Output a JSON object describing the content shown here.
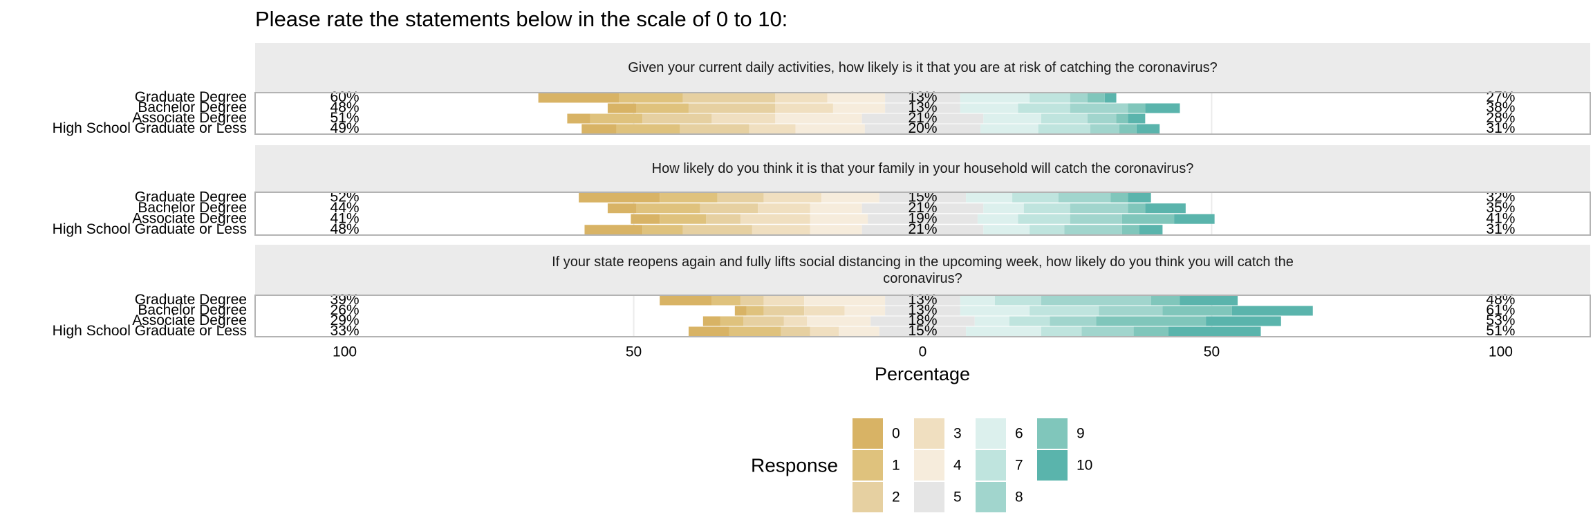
{
  "chart_data": {
    "type": "diverging_bar",
    "title": "Please rate the statements below in the scale of 0 to 10:",
    "x_label": "Percentage",
    "legend_title": "Response",
    "xlim": [
      -115.5,
      115.5
    ],
    "xticks": [
      {
        "value": -100,
        "label": "100"
      },
      {
        "value": -50,
        "label": "50"
      },
      0,
      50,
      100
    ],
    "categories": [
      "Graduate Degree",
      "Bachelor Degree",
      "Associate Degree",
      "High School Graduate or Less"
    ],
    "series": [
      {
        "name": "0",
        "color": "#d8b365"
      },
      {
        "name": "1",
        "color": "#dfc27d"
      },
      {
        "name": "2",
        "color": "#e6d0a1"
      },
      {
        "name": "3",
        "color": "#f0dfc0"
      },
      {
        "name": "4",
        "color": "#f6ecdc"
      },
      {
        "name": "5",
        "color": "#e5e5e5"
      },
      {
        "name": "6",
        "color": "#dcf0ed"
      },
      {
        "name": "7",
        "color": "#bfe4de"
      },
      {
        "name": "8",
        "color": "#a1d5cd"
      },
      {
        "name": "9",
        "color": "#80c6bb"
      },
      {
        "name": "10",
        "color": "#5ab4ac"
      }
    ],
    "panels": [
      {
        "title": "Given your current daily activities, how likely is it that you are at risk of catching the coronavirus?",
        "values": [
          [
            14,
            11,
            16,
            9,
            10,
            13,
            12,
            7,
            3,
            3,
            2
          ],
          [
            5,
            9,
            15,
            10,
            9,
            13,
            10,
            9,
            10,
            3,
            6
          ],
          [
            4,
            9,
            12,
            11,
            15,
            21,
            10,
            8,
            5,
            2,
            3
          ],
          [
            6,
            11,
            12,
            8,
            12,
            20,
            10,
            9,
            5,
            3,
            4
          ]
        ],
        "low_labels": [
          "60%",
          "48%",
          "51%",
          "49%"
        ],
        "neutral_labels": [
          "13%",
          "13%",
          "21%",
          "20%"
        ],
        "high_labels": [
          "27%",
          "38%",
          "28%",
          "31%"
        ]
      },
      {
        "title": "How likely do you think it is that your family in your household will catch the coronavirus?",
        "values": [
          [
            14,
            10,
            8,
            10,
            10,
            15,
            8,
            8,
            9,
            3,
            4
          ],
          [
            5,
            11,
            10,
            9,
            9,
            21,
            7,
            8,
            10,
            3,
            7
          ],
          [
            5,
            8,
            6,
            12,
            10,
            19,
            7,
            9,
            9,
            9,
            7
          ],
          [
            10,
            7,
            12,
            10,
            9,
            21,
            8,
            6,
            10,
            3,
            4
          ]
        ],
        "low_labels": [
          "52%",
          "44%",
          "41%",
          "48%"
        ],
        "neutral_labels": [
          "15%",
          "21%",
          "19%",
          "21%"
        ],
        "high_labels": [
          "32%",
          "35%",
          "41%",
          "31%"
        ]
      },
      {
        "title": "If your state reopens again and fully lifts social distancing in the upcoming week, how likely do you think you will catch the coronavirus?",
        "values": [
          [
            9,
            5,
            4,
            7,
            14,
            13,
            6,
            8,
            19,
            5,
            10
          ],
          [
            2,
            3,
            7,
            7,
            7,
            13,
            12,
            12,
            11,
            12,
            14
          ],
          [
            3,
            4,
            7,
            4,
            11,
            18,
            6,
            7,
            8,
            19,
            13
          ],
          [
            7,
            9,
            5,
            5,
            7,
            15,
            13,
            7,
            9,
            6,
            16
          ]
        ],
        "low_labels": [
          "39%",
          "26%",
          "29%",
          "33%"
        ],
        "neutral_labels": [
          "13%",
          "13%",
          "18%",
          "15%"
        ],
        "high_labels": [
          "48%",
          "61%",
          "53%",
          "51%"
        ]
      }
    ]
  }
}
